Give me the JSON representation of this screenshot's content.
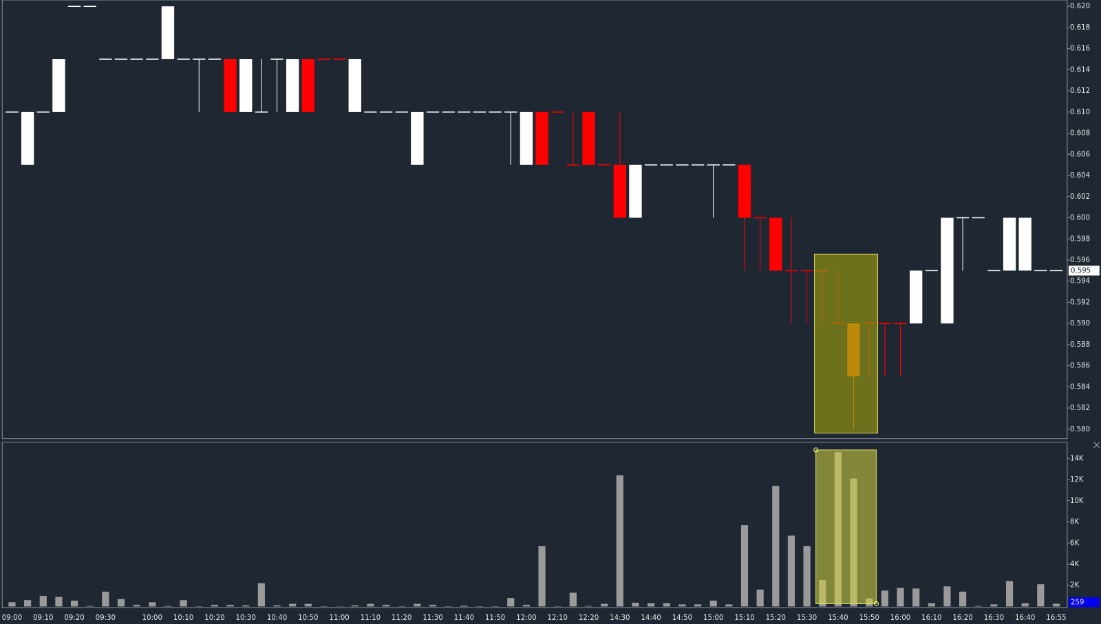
{
  "chart_data": [
    {
      "type": "candlestick",
      "categories": [
        "09:00",
        null,
        "09:10",
        null,
        "09:20",
        null,
        "09:30",
        null,
        null,
        "10:00",
        null,
        "10:10",
        null,
        "10:20",
        null,
        "10:30",
        null,
        "10:40",
        null,
        "10:50",
        null,
        "11:00",
        null,
        "11:10",
        null,
        "11:20",
        null,
        "11:30",
        null,
        "11:40",
        null,
        "11:50",
        null,
        "12:00",
        null,
        "12:10",
        null,
        "12:20",
        null,
        "14:30",
        null,
        "14:40",
        null,
        "14:50",
        null,
        "15:00",
        null,
        "15:10",
        null,
        "15:20",
        null,
        "15:30",
        null,
        "15:40",
        null,
        "15:50",
        null,
        "16:00",
        null,
        "16:10",
        null,
        "16:20",
        null,
        "16:30",
        null,
        "16:40",
        null,
        "16:55"
      ],
      "open": [
        0.61,
        0.605,
        0.61,
        0.61,
        0.62,
        0.62,
        0.615,
        0.615,
        0.615,
        0.615,
        0.615,
        0.615,
        0.615,
        0.615,
        0.615,
        0.61,
        0.61,
        0.615,
        0.61,
        0.615,
        0.615,
        0.615,
        0.61,
        0.61,
        0.61,
        0.61,
        0.605,
        0.61,
        0.61,
        0.61,
        0.61,
        0.61,
        0.61,
        0.605,
        0.61,
        0.61,
        0.605,
        0.61,
        0.605,
        0.605,
        0.6,
        0.605,
        0.605,
        0.605,
        0.605,
        0.605,
        0.605,
        0.605,
        0.6,
        0.6,
        0.595,
        0.595,
        0.595,
        0.59,
        0.59,
        0.59,
        0.59,
        0.59,
        0.59,
        0.595,
        0.59,
        0.6,
        0.6,
        0.595,
        0.595,
        0.595,
        0.595,
        0.595
      ],
      "high": [
        0.61,
        0.61,
        0.61,
        0.615,
        0.62,
        0.62,
        0.615,
        0.615,
        0.615,
        0.615,
        0.62,
        0.615,
        0.615,
        0.615,
        0.615,
        0.615,
        0.615,
        0.615,
        0.615,
        0.615,
        0.615,
        0.615,
        0.615,
        0.61,
        0.61,
        0.61,
        0.61,
        0.61,
        0.61,
        0.61,
        0.61,
        0.61,
        0.61,
        0.61,
        0.61,
        0.61,
        0.61,
        0.61,
        0.605,
        0.61,
        0.605,
        0.605,
        0.605,
        0.605,
        0.605,
        0.605,
        0.605,
        0.605,
        0.6,
        0.6,
        0.6,
        0.595,
        0.595,
        0.595,
        0.59,
        0.59,
        0.59,
        0.59,
        0.595,
        0.595,
        0.6,
        0.6,
        0.6,
        0.595,
        0.6,
        0.6,
        0.595,
        0.595
      ],
      "low": [
        0.61,
        0.605,
        0.61,
        0.61,
        0.62,
        0.62,
        0.615,
        0.615,
        0.615,
        0.615,
        0.615,
        0.615,
        0.61,
        0.615,
        0.61,
        0.61,
        0.61,
        0.61,
        0.61,
        0.61,
        0.615,
        0.615,
        0.61,
        0.61,
        0.61,
        0.61,
        0.605,
        0.61,
        0.61,
        0.61,
        0.61,
        0.61,
        0.605,
        0.605,
        0.605,
        0.61,
        0.605,
        0.605,
        0.605,
        0.6,
        0.6,
        0.605,
        0.605,
        0.605,
        0.605,
        0.6,
        0.605,
        0.595,
        0.595,
        0.595,
        0.59,
        0.59,
        0.59,
        0.59,
        0.58,
        0.585,
        0.585,
        0.585,
        0.59,
        0.595,
        0.59,
        0.595,
        0.6,
        0.595,
        0.595,
        0.595,
        0.595,
        0.595
      ],
      "close": [
        0.61,
        0.61,
        0.61,
        0.615,
        0.62,
        0.62,
        0.615,
        0.615,
        0.615,
        0.615,
        0.62,
        0.615,
        0.615,
        0.615,
        0.61,
        0.615,
        0.61,
        0.615,
        0.615,
        0.61,
        0.615,
        0.615,
        0.615,
        0.61,
        0.61,
        0.61,
        0.61,
        0.61,
        0.61,
        0.61,
        0.61,
        0.61,
        0.61,
        0.61,
        0.605,
        0.61,
        0.605,
        0.605,
        0.605,
        0.6,
        0.605,
        0.605,
        0.605,
        0.605,
        0.605,
        0.605,
        0.605,
        0.6,
        0.6,
        0.595,
        0.595,
        0.595,
        0.595,
        0.59,
        0.585,
        0.59,
        0.59,
        0.59,
        0.595,
        0.595,
        0.6,
        0.6,
        0.6,
        0.595,
        0.6,
        0.6,
        0.595,
        0.595
      ],
      "colors": [
        "#ffffff",
        "#ffffff",
        "#ffffff",
        "#ffffff",
        "#ffffff",
        "#ffffff",
        "#ffffff",
        "#ffffff",
        "#ffffff",
        "#ffffff",
        "#ffffff",
        "#ffffff",
        "#ffffff",
        "#ffffff",
        "#ff0000",
        "#ffffff",
        "#ffffff",
        "#ffffff",
        "#ffffff",
        "#ff0000",
        "#ff0000",
        "#ff0000",
        "#ffffff",
        "#ffffff",
        "#ffffff",
        "#ffffff",
        "#ffffff",
        "#ffffff",
        "#ffffff",
        "#ffffff",
        "#ffffff",
        "#ffffff",
        "#ffffff",
        "#ffffff",
        "#ff0000",
        "#ff0000",
        "#ff0000",
        "#ff0000",
        "#ff0000",
        "#ff0000",
        "#ffffff",
        "#ffffff",
        "#ffffff",
        "#ffffff",
        "#ffffff",
        "#ffffff",
        "#ffffff",
        "#ff0000",
        "#ff0000",
        "#ff0000",
        "#ff0000",
        "#ff0000",
        "#ff0000",
        "#ff0000",
        "#ff6a00",
        "#ff0000",
        "#ff0000",
        "#ff0000",
        "#ffffff",
        "#ffffff",
        "#ffffff",
        "#ffffff",
        "#ffffff",
        "#ffffff",
        "#ffffff",
        "#ffffff",
        "#ffffff",
        "#ffffff"
      ],
      "ylim": [
        0.5791,
        0.6206
      ],
      "yticks": [
        {
          "value": 0.62,
          "label": "0.620"
        },
        0.618,
        0.616,
        0.614,
        0.612,
        {
          "value": 0.61,
          "label": "0.610"
        },
        0.608,
        0.606,
        0.604,
        0.602,
        {
          "value": 0.6,
          "label": "0.600"
        },
        0.598,
        0.596,
        0.594,
        0.592,
        {
          "value": 0.59,
          "label": "0.590"
        },
        0.588,
        0.586,
        0.584,
        0.582,
        {
          "value": 0.58,
          "label": "0.580"
        }
      ]
    },
    {
      "type": "bar",
      "values": [
        400,
        600,
        1000,
        900,
        550,
        50,
        1400,
        700,
        150,
        400,
        50,
        600,
        30,
        150,
        150,
        100,
        2200,
        100,
        250,
        250,
        30,
        20,
        100,
        250,
        150,
        30,
        250,
        150,
        30,
        80,
        30,
        30,
        800,
        150,
        5700,
        30,
        1300,
        50,
        250,
        12400,
        350,
        300,
        300,
        200,
        200,
        550,
        200,
        7700,
        1600,
        11400,
        6700,
        5700,
        2500,
        14600,
        12100,
        750,
        1500,
        1750,
        1700,
        300,
        1900,
        1400,
        50,
        200,
        2400,
        300,
        2100,
        259
      ],
      "color": "#9a9a9a",
      "ylim": [
        0,
        15530
      ],
      "yticks": [
        {
          "value": 2000,
          "label": "2K"
        },
        {
          "value": 4000,
          "label": "4K"
        },
        {
          "value": 6000,
          "label": "6K"
        },
        {
          "value": 8000,
          "label": "8K"
        },
        {
          "value": 10000,
          "label": "10K"
        },
        {
          "value": 12000,
          "label": "12K"
        },
        {
          "value": 14000,
          "label": "14K"
        }
      ]
    }
  ]
}
